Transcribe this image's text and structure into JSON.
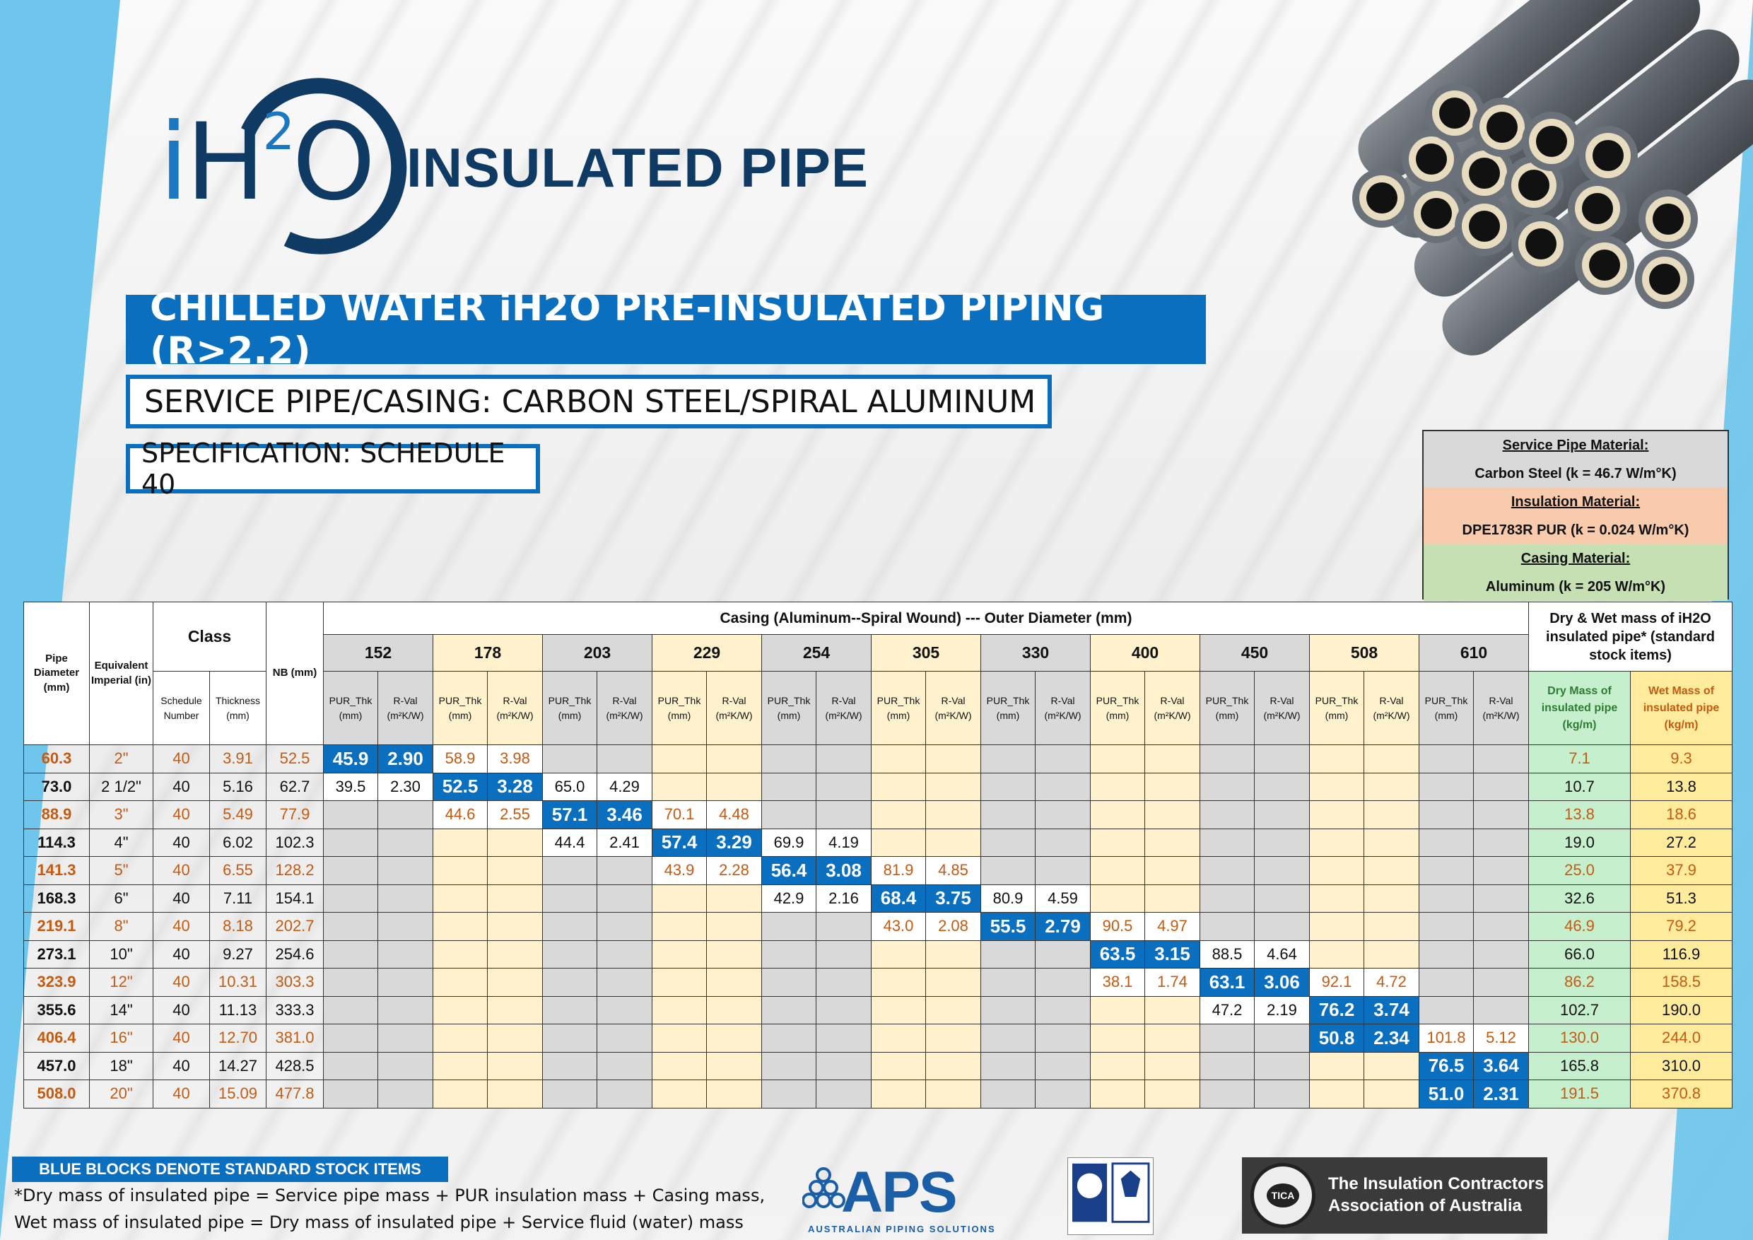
{
  "brand": {
    "logo_i": "i",
    "logo_h": "H",
    "logo_sup": "2",
    "logo_o": "O",
    "title": "INSULATED PIPE"
  },
  "banners": {
    "main": "CHILLED WATER iH2O PRE-INSULATED PIPING (R>2.2)",
    "sub": "SERVICE PIPE/CASING: CARBON STEEL/SPIRAL ALUMINUM",
    "spec": "SPECIFICATION: SCHEDULE 40"
  },
  "materials": {
    "service_head": "Service Pipe Material:",
    "service_value": "Carbon Steel     (k = 46.7 W/m°K)",
    "insulation_head": "Insulation Material:",
    "insulation_value": "DPE1783R PUR     (k = 0.024 W/m°K)",
    "casing_head": "Casing Material:",
    "casing_value": "Aluminum     (k = 205 W/m°K)"
  },
  "table": {
    "h_pipe_diameter": "Pipe Diameter (mm)",
    "h_equiv_imperial": "Equivalent Imperial (in)",
    "h_class": "Class",
    "h_schedule": "Schedule Number",
    "h_thickness": "Thickness (mm)",
    "h_nb": "NB (mm)",
    "h_casing": "Casing (Aluminum--Spiral Wound) --- Outer Diameter (mm)",
    "h_pur": "PUR_Thk (mm)",
    "h_rval": "R-Val (m²K/W)",
    "h_mass": "Dry & Wet mass of iH2O insulated pipe* (standard stock items)",
    "h_dry": "Dry Mass of insulated pipe (kg/m)",
    "h_wet": "Wet Mass of insulated pipe (kg/m)",
    "casing_ods": [
      "152",
      "178",
      "203",
      "229",
      "254",
      "305",
      "330",
      "400",
      "450",
      "508",
      "610"
    ],
    "rows": [
      {
        "dia": "60.3",
        "imp": "2\"",
        "sch": "40",
        "thk": "3.91",
        "nb": "52.5",
        "orange": true,
        "cells": [
          [
            "45.9",
            "2.90",
            "blue"
          ],
          [
            "58.9",
            "3.98",
            ""
          ],
          null,
          null,
          null,
          null,
          null,
          null,
          null,
          null,
          null
        ],
        "dry": "7.1",
        "wet": "9.3"
      },
      {
        "dia": "73.0",
        "imp": "2 1/2\"",
        "sch": "40",
        "thk": "5.16",
        "nb": "62.7",
        "orange": false,
        "cells": [
          [
            "39.5",
            "2.30",
            ""
          ],
          [
            "52.5",
            "3.28",
            "blue"
          ],
          [
            "65.0",
            "4.29",
            ""
          ],
          null,
          null,
          null,
          null,
          null,
          null,
          null,
          null
        ],
        "dry": "10.7",
        "wet": "13.8"
      },
      {
        "dia": "88.9",
        "imp": "3\"",
        "sch": "40",
        "thk": "5.49",
        "nb": "77.9",
        "orange": true,
        "cells": [
          null,
          [
            "44.6",
            "2.55",
            ""
          ],
          [
            "57.1",
            "3.46",
            "blue"
          ],
          [
            "70.1",
            "4.48",
            ""
          ],
          null,
          null,
          null,
          null,
          null,
          null,
          null
        ],
        "dry": "13.8",
        "wet": "18.6"
      },
      {
        "dia": "114.3",
        "imp": "4\"",
        "sch": "40",
        "thk": "6.02",
        "nb": "102.3",
        "orange": false,
        "cells": [
          null,
          null,
          [
            "44.4",
            "2.41",
            ""
          ],
          [
            "57.4",
            "3.29",
            "blue"
          ],
          [
            "69.9",
            "4.19",
            ""
          ],
          null,
          null,
          null,
          null,
          null,
          null
        ],
        "dry": "19.0",
        "wet": "27.2"
      },
      {
        "dia": "141.3",
        "imp": "5\"",
        "sch": "40",
        "thk": "6.55",
        "nb": "128.2",
        "orange": true,
        "cells": [
          null,
          null,
          null,
          [
            "43.9",
            "2.28",
            ""
          ],
          [
            "56.4",
            "3.08",
            "blue"
          ],
          [
            "81.9",
            "4.85",
            ""
          ],
          null,
          null,
          null,
          null,
          null
        ],
        "dry": "25.0",
        "wet": "37.9"
      },
      {
        "dia": "168.3",
        "imp": "6\"",
        "sch": "40",
        "thk": "7.11",
        "nb": "154.1",
        "orange": false,
        "cells": [
          null,
          null,
          null,
          null,
          [
            "42.9",
            "2.16",
            ""
          ],
          [
            "68.4",
            "3.75",
            "blue"
          ],
          [
            "80.9",
            "4.59",
            ""
          ],
          null,
          null,
          null,
          null
        ],
        "dry": "32.6",
        "wet": "51.3"
      },
      {
        "dia": "219.1",
        "imp": "8\"",
        "sch": "40",
        "thk": "8.18",
        "nb": "202.7",
        "orange": true,
        "cells": [
          null,
          null,
          null,
          null,
          null,
          [
            "43.0",
            "2.08",
            ""
          ],
          [
            "55.5",
            "2.79",
            "blue"
          ],
          [
            "90.5",
            "4.97",
            ""
          ],
          null,
          null,
          null
        ],
        "dry": "46.9",
        "wet": "79.2"
      },
      {
        "dia": "273.1",
        "imp": "10\"",
        "sch": "40",
        "thk": "9.27",
        "nb": "254.6",
        "orange": false,
        "cells": [
          null,
          null,
          null,
          null,
          null,
          null,
          null,
          [
            "63.5",
            "3.15",
            "blue"
          ],
          [
            "88.5",
            "4.64",
            ""
          ],
          null,
          null
        ],
        "dry": "66.0",
        "wet": "116.9"
      },
      {
        "dia": "323.9",
        "imp": "12\"",
        "sch": "40",
        "thk": "10.31",
        "nb": "303.3",
        "orange": true,
        "cells": [
          null,
          null,
          null,
          null,
          null,
          null,
          null,
          [
            "38.1",
            "1.74",
            ""
          ],
          [
            "63.1",
            "3.06",
            "blue"
          ],
          [
            "92.1",
            "4.72",
            ""
          ],
          null
        ],
        "dry": "86.2",
        "wet": "158.5"
      },
      {
        "dia": "355.6",
        "imp": "14\"",
        "sch": "40",
        "thk": "11.13",
        "nb": "333.3",
        "orange": false,
        "cells": [
          null,
          null,
          null,
          null,
          null,
          null,
          null,
          null,
          [
            "47.2",
            "2.19",
            ""
          ],
          [
            "76.2",
            "3.74",
            "blue"
          ],
          null
        ],
        "dry": "102.7",
        "wet": "190.0"
      },
      {
        "dia": "406.4",
        "imp": "16\"",
        "sch": "40",
        "thk": "12.70",
        "nb": "381.0",
        "orange": true,
        "cells": [
          null,
          null,
          null,
          null,
          null,
          null,
          null,
          null,
          null,
          [
            "50.8",
            "2.34",
            "blue"
          ],
          [
            "101.8",
            "5.12",
            ""
          ]
        ],
        "dry": "130.0",
        "wet": "244.0"
      },
      {
        "dia": "457.0",
        "imp": "18\"",
        "sch": "40",
        "thk": "14.27",
        "nb": "428.5",
        "orange": false,
        "cells": [
          null,
          null,
          null,
          null,
          null,
          null,
          null,
          null,
          null,
          null,
          [
            "76.5",
            "3.64",
            "blue"
          ]
        ],
        "dry": "165.8",
        "wet": "310.0"
      },
      {
        "dia": "508.0",
        "imp": "20\"",
        "sch": "40",
        "thk": "15.09",
        "nb": "477.8",
        "orange": true,
        "cells": [
          null,
          null,
          null,
          null,
          null,
          null,
          null,
          null,
          null,
          null,
          [
            "51.0",
            "2.31",
            "blue"
          ]
        ],
        "dry": "191.5",
        "wet": "370.8"
      }
    ]
  },
  "footer": {
    "legend": "BLUE BLOCKS DENOTE STANDARD STOCK ITEMS",
    "note1": "*Dry mass of insulated pipe = Service pipe mass + PUR insulation mass + Casing mass,",
    "note2": "Wet mass of insulated pipe = Dry mass of insulated pipe + Service fluid (water) mass",
    "aps": "APS",
    "aps_sub": "AUSTRALIAN PIPING SOLUTIONS",
    "tica_line1": "The Insulation Contractors",
    "tica_line2": "Association of Australia",
    "tica_badge": "TICA"
  },
  "colors": {
    "brand_blue": "#0b6fc0",
    "navy": "#0e3a64",
    "orange_text": "#c55a11",
    "grey_col": "#d9d9d9",
    "yellow_col": "#fff2cc",
    "dry_green": "#c6efce",
    "wet_yellow": "#ffeb9c"
  }
}
